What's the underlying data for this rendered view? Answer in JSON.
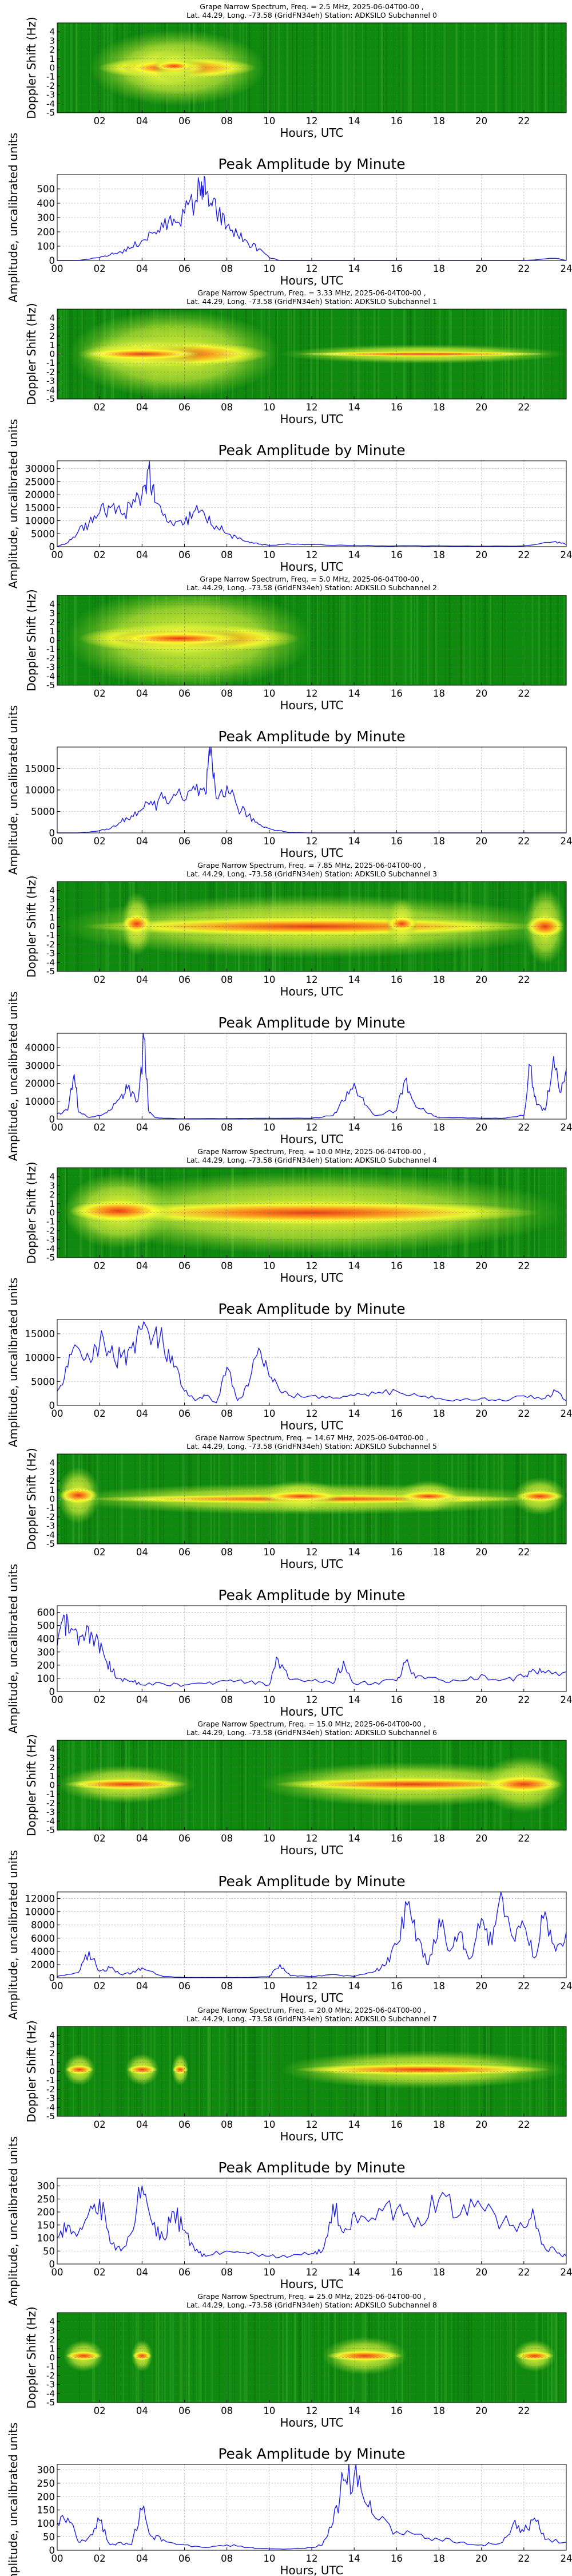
{
  "axis": {
    "xlabel": "Hours, UTC",
    "spec_ylabel": "Doppler Shift (Hz)",
    "amp_ylabel": "Amplitude, uncalibrated units",
    "amp_title": "Peak Amplitude by Minute",
    "spec_xticks": [
      "02",
      "04",
      "06",
      "08",
      "10",
      "12",
      "14",
      "16",
      "18",
      "20",
      "22"
    ],
    "amp_xticks": [
      "00",
      "02",
      "04",
      "06",
      "08",
      "10",
      "12",
      "14",
      "16",
      "18",
      "20",
      "22",
      "24"
    ],
    "spec_yticks": [
      "4",
      "3",
      "2",
      "1",
      "0",
      "-1",
      "-2",
      "-3",
      "-4",
      "-5"
    ]
  },
  "colors": {
    "spectrum_background": "#0f8a0f",
    "spectrum_yellow": "#ffff33",
    "spectrum_red": "#e83016",
    "line": "#1f1fe6",
    "grid": "#b0b0b0"
  },
  "chart_data": [
    {
      "type": "heatmap",
      "subchannel": 0,
      "title_line1": "Grape Narrow Spectrum, Freq. = 2.5 MHz, 2025-06-04T00-00 ,",
      "title_line2": "Lat. 44.29, Long. -73.58 (GridFN34eh) Station: ADKSILO Subchannel 0",
      "xlim": [
        0,
        24
      ],
      "ylim": [
        -5,
        5
      ],
      "activity": [
        [
          1.5,
          0,
          9.8,
          1.2
        ],
        [
          3,
          0,
          7.2,
          0.8
        ],
        [
          4.5,
          0.2,
          6.5,
          0.5
        ]
      ]
    },
    {
      "type": "line",
      "subchannel": 0,
      "ylim": [
        0,
        600
      ],
      "yticks": [
        0,
        100,
        200,
        300,
        400,
        500
      ],
      "x": [
        0,
        1,
        2,
        2.5,
        3,
        3.5,
        4,
        4.5,
        5,
        5.5,
        6,
        6.5,
        6.8,
        7,
        7.3,
        7.6,
        8,
        8.5,
        9,
        9.5,
        10,
        10.5,
        11,
        12,
        14,
        16,
        18,
        20,
        22,
        23.5,
        24
      ],
      "y": [
        0,
        0,
        20,
        40,
        60,
        90,
        140,
        190,
        230,
        290,
        330,
        410,
        550,
        460,
        380,
        320,
        240,
        180,
        120,
        80,
        20,
        0,
        0,
        0,
        0,
        0,
        0,
        0,
        0,
        15,
        0
      ]
    },
    {
      "type": "heatmap",
      "subchannel": 1,
      "title_line1": "Grape Narrow Spectrum, Freq. = 3.33 MHz, 2025-06-04T00-00 ,",
      "title_line2": "Lat. 44.29, Long. -73.58 (GridFN34eh) Station: ADKSILO Subchannel 1",
      "xlim": [
        0,
        24
      ],
      "ylim": [
        -5,
        5
      ],
      "activity": [
        [
          0.5,
          0,
          10.5,
          1.4
        ],
        [
          1,
          0,
          7,
          0.6
        ],
        [
          10.5,
          0,
          24,
          0.3
        ]
      ]
    },
    {
      "type": "line",
      "subchannel": 1,
      "ylim": [
        0,
        33000
      ],
      "yticks": [
        0,
        5000,
        10000,
        15000,
        20000,
        25000,
        30000
      ],
      "x": [
        0,
        0.5,
        1,
        1.5,
        2,
        2.5,
        3,
        3.5,
        4,
        4.3,
        4.6,
        5,
        5.5,
        6,
        6.5,
        7,
        7.5,
        8,
        8.5,
        9,
        9.5,
        10,
        11,
        12,
        14,
        16,
        18,
        20,
        22,
        23.5,
        24
      ],
      "y": [
        0,
        1500,
        6000,
        9000,
        13000,
        15000,
        13000,
        15000,
        20000,
        30000,
        17000,
        12000,
        8000,
        9000,
        14000,
        11000,
        8000,
        5000,
        3000,
        2000,
        1000,
        500,
        1000,
        800,
        400,
        300,
        300,
        200,
        300,
        2000,
        800
      ]
    },
    {
      "type": "heatmap",
      "subchannel": 2,
      "title_line1": "Grape Narrow Spectrum, Freq. = 5.0 MHz, 2025-06-04T00-00 ,",
      "title_line2": "Lat. 44.29, Long. -73.58 (GridFN34eh) Station: ADKSILO Subchannel 2",
      "xlim": [
        0,
        24
      ],
      "ylim": [
        -5,
        5
      ],
      "activity": [
        [
          0.4,
          0.2,
          12,
          1.6
        ],
        [
          2.5,
          0.2,
          9,
          0.7
        ]
      ]
    },
    {
      "type": "line",
      "subchannel": 2,
      "ylim": [
        0,
        20000
      ],
      "yticks": [
        0,
        5000,
        10000,
        15000
      ],
      "x": [
        0,
        1,
        2,
        2.5,
        3,
        3.5,
        4,
        4.5,
        5,
        5.5,
        6,
        6.5,
        7,
        7.2,
        7.5,
        8,
        8.5,
        9,
        9.5,
        10,
        10.5,
        11,
        12,
        14,
        16,
        18,
        20,
        22,
        24
      ],
      "y": [
        0,
        0,
        500,
        1000,
        2500,
        4000,
        5500,
        6500,
        8000,
        9000,
        7500,
        10000,
        9000,
        18000,
        8000,
        11000,
        6000,
        4000,
        2000,
        1000,
        500,
        100,
        0,
        0,
        0,
        0,
        0,
        0,
        0
      ]
    },
    {
      "type": "heatmap",
      "subchannel": 3,
      "title_line1": "Grape Narrow Spectrum, Freq. = 7.85 MHz, 2025-06-04T00-00 ,",
      "title_line2": "Lat. 44.29, Long. -73.58 (GridFN34eh) Station: ADKSILO Subchannel 3",
      "xlim": [
        0,
        24
      ],
      "ylim": [
        -5,
        5
      ],
      "activity": [
        [
          0,
          0,
          24,
          1.0
        ],
        [
          3,
          0.3,
          4.5,
          1.0
        ],
        [
          15.5,
          0.3,
          17,
          0.8
        ],
        [
          22,
          0,
          24,
          1.2
        ]
      ]
    },
    {
      "type": "line",
      "subchannel": 3,
      "ylim": [
        0,
        48000
      ],
      "yticks": [
        0,
        10000,
        20000,
        30000,
        40000
      ],
      "x": [
        0,
        0.5,
        0.8,
        1,
        1.5,
        2,
        2.5,
        3,
        3.3,
        3.8,
        4.1,
        4.3,
        4.6,
        5,
        6,
        8,
        10,
        12,
        13,
        13.5,
        14,
        14.5,
        15,
        16,
        16.4,
        16.8,
        17.5,
        18,
        20,
        21,
        22,
        22.3,
        22.6,
        23,
        23.4,
        23.7,
        24
      ],
      "y": [
        3000,
        5000,
        25000,
        4000,
        1000,
        2000,
        5000,
        13000,
        17000,
        10000,
        45000,
        5000,
        1000,
        500,
        200,
        300,
        500,
        500,
        2000,
        10000,
        20000,
        8000,
        2000,
        5000,
        22000,
        10000,
        3000,
        1000,
        500,
        500,
        2000,
        30000,
        8000,
        5000,
        35000,
        15000,
        28000
      ]
    },
    {
      "type": "heatmap",
      "subchannel": 4,
      "title_line1": "Grape Narrow Spectrum, Freq. = 10.0 MHz, 2025-06-04T00-00 ,",
      "title_line2": "Lat. 44.29, Long. -73.58 (GridFN34eh) Station: ADKSILO Subchannel 4",
      "xlim": [
        0,
        24
      ],
      "ylim": [
        -5,
        5
      ],
      "activity": [
        [
          0,
          0,
          24,
          1.3
        ],
        [
          0.3,
          0.2,
          5.5,
          1.2
        ]
      ]
    },
    {
      "type": "line",
      "subchannel": 4,
      "ylim": [
        0,
        18000
      ],
      "yticks": [
        0,
        5000,
        10000,
        15000
      ],
      "x": [
        0,
        0.5,
        1,
        1.5,
        2,
        2.5,
        3,
        3.5,
        4,
        4.5,
        5,
        5.5,
        6,
        6.5,
        7,
        7.5,
        8,
        8.5,
        9,
        9.5,
        10,
        10.5,
        11,
        12,
        13,
        14,
        15,
        16,
        17,
        18,
        19,
        20,
        21,
        22,
        23,
        23.5,
        24
      ],
      "y": [
        3000,
        8000,
        12000,
        10000,
        13000,
        11000,
        10000,
        12000,
        16000,
        14000,
        13000,
        8000,
        3000,
        1000,
        2000,
        500,
        8000,
        1000,
        4000,
        12000,
        6000,
        3000,
        2000,
        2000,
        1500,
        2000,
        2500,
        3000,
        2000,
        1500,
        1000,
        1500,
        1000,
        2000,
        1500,
        3000,
        1000
      ]
    },
    {
      "type": "heatmap",
      "subchannel": 5,
      "title_line1": "Grape Narrow Spectrum, Freq. = 14.67 MHz, 2025-06-04T00-00 ,",
      "title_line2": "Lat. 44.29, Long. -73.58 (GridFN34eh) Station: ADKSILO Subchannel 5",
      "xlim": [
        0,
        24
      ],
      "ylim": [
        -5,
        5
      ],
      "activity": [
        [
          0,
          0,
          24,
          0.5
        ],
        [
          0,
          0.4,
          2,
          0.9
        ],
        [
          9.5,
          0.3,
          13.5,
          0.5
        ],
        [
          16,
          0.3,
          19,
          0.5
        ],
        [
          21.5,
          0.3,
          24,
          0.6
        ]
      ]
    },
    {
      "type": "line",
      "subchannel": 5,
      "ylim": [
        0,
        650
      ],
      "yticks": [
        0,
        100,
        200,
        300,
        400,
        500,
        600
      ],
      "x": [
        0,
        0.3,
        0.6,
        1,
        1.4,
        1.8,
        2.2,
        2.6,
        3,
        3.5,
        4,
        5,
        6,
        7,
        8,
        9,
        10,
        10.4,
        11,
        12,
        13,
        13.5,
        14,
        15,
        16,
        16.4,
        17,
        18,
        19,
        20,
        21,
        22,
        22.5,
        23,
        24
      ],
      "y": [
        350,
        580,
        450,
        350,
        500,
        400,
        280,
        150,
        100,
        80,
        50,
        60,
        50,
        60,
        80,
        70,
        50,
        250,
        90,
        80,
        60,
        230,
        60,
        70,
        80,
        220,
        120,
        90,
        80,
        130,
        90,
        110,
        160,
        140,
        150
      ]
    },
    {
      "type": "heatmap",
      "subchannel": 6,
      "title_line1": "Grape Narrow Spectrum, Freq. = 15.0 MHz, 2025-06-04T00-00 ,",
      "title_line2": "Lat. 44.29, Long. -73.58 (GridFN34eh) Station: ADKSILO Subchannel 6",
      "xlim": [
        0,
        24
      ],
      "ylim": [
        -5,
        5
      ],
      "activity": [
        [
          0,
          0.1,
          6.5,
          0.6
        ],
        [
          9.5,
          0.1,
          24,
          0.7
        ],
        [
          20,
          0.1,
          24,
          0.9
        ]
      ]
    },
    {
      "type": "line",
      "subchannel": 6,
      "ylim": [
        0,
        13000
      ],
      "yticks": [
        0,
        2000,
        4000,
        6000,
        8000,
        10000,
        12000
      ],
      "x": [
        0,
        1,
        1.5,
        2,
        2.5,
        3,
        3.5,
        4,
        5,
        6,
        7,
        8,
        9,
        10,
        10.5,
        11,
        12,
        13,
        14,
        15,
        15.5,
        16,
        16.5,
        17,
        17.5,
        18,
        18.5,
        19,
        19.5,
        20,
        20.5,
        21,
        21.5,
        22,
        22.5,
        23,
        23.5,
        24
      ],
      "y": [
        200,
        800,
        4000,
        1000,
        1500,
        500,
        700,
        1500,
        200,
        50,
        50,
        50,
        50,
        200,
        2000,
        300,
        200,
        500,
        200,
        1000,
        2000,
        5000,
        11000,
        6000,
        2000,
        9000,
        4000,
        7000,
        3000,
        9000,
        5000,
        12000,
        6000,
        8000,
        3000,
        10000,
        4000,
        7000
      ]
    },
    {
      "type": "heatmap",
      "subchannel": 7,
      "title_line1": "Grape Narrow Spectrum, Freq. = 20.0 MHz, 2025-06-04T00-00 ,",
      "title_line2": "Lat. 44.29, Long. -73.58 (GridFN34eh) Station: ADKSILO Subchannel 7",
      "xlim": [
        0,
        24
      ],
      "ylim": [
        -5,
        5
      ],
      "activity": [
        [
          0.3,
          0.2,
          1.8,
          0.5
        ],
        [
          3.2,
          0.2,
          4.8,
          0.5
        ],
        [
          5.4,
          0.2,
          6.2,
          0.5
        ],
        [
          10.5,
          0.2,
          24,
          0.6
        ]
      ]
    },
    {
      "type": "line",
      "subchannel": 7,
      "ylim": [
        0,
        330
      ],
      "yticks": [
        0,
        50,
        100,
        150,
        200,
        250,
        300
      ],
      "x": [
        0,
        0.5,
        1,
        1.5,
        2,
        2.5,
        3,
        3.5,
        4,
        4.5,
        5,
        5.5,
        6,
        6.5,
        7,
        8,
        9,
        10,
        11,
        12,
        12.5,
        13,
        13.5,
        14,
        15,
        16,
        17,
        18,
        19,
        20,
        21,
        22,
        22.5,
        23,
        23.5,
        24
      ],
      "y": [
        100,
        150,
        120,
        200,
        250,
        80,
        50,
        120,
        300,
        150,
        100,
        200,
        130,
        50,
        30,
        50,
        40,
        30,
        30,
        40,
        50,
        230,
        120,
        200,
        170,
        210,
        180,
        250,
        190,
        220,
        160,
        140,
        180,
        60,
        50,
        30
      ]
    },
    {
      "type": "heatmap",
      "subchannel": 8,
      "title_line1": "Grape Narrow Spectrum, Freq. = 25.0 MHz, 2025-06-04T00-00 ,",
      "title_line2": "Lat. 44.29, Long. -73.58 (GridFN34eh) Station: ADKSILO Subchannel 8",
      "xlim": [
        0,
        24
      ],
      "ylim": [
        -5,
        5
      ],
      "activity": [
        [
          0.3,
          0.2,
          2.2,
          0.5
        ],
        [
          3.5,
          0.2,
          4.5,
          0.5
        ],
        [
          12.5,
          0.2,
          16.5,
          0.6
        ],
        [
          21.5,
          0.2,
          23.5,
          0.5
        ]
      ]
    },
    {
      "type": "line",
      "subchannel": 8,
      "ylim": [
        0,
        320
      ],
      "yticks": [
        0,
        50,
        100,
        150,
        200,
        250,
        300
      ],
      "x": [
        0,
        0.5,
        1,
        1.5,
        2,
        2.5,
        3,
        3.5,
        4,
        4.5,
        5,
        6,
        7,
        8,
        9,
        10,
        11,
        12,
        12.5,
        13,
        13.5,
        14,
        14.5,
        15,
        16,
        17,
        18,
        19,
        20,
        21,
        21.5,
        22,
        22.5,
        23,
        24
      ],
      "y": [
        100,
        120,
        30,
        50,
        110,
        20,
        30,
        20,
        150,
        50,
        40,
        20,
        10,
        20,
        10,
        5,
        5,
        10,
        20,
        100,
        260,
        280,
        180,
        120,
        70,
        60,
        40,
        30,
        20,
        30,
        100,
        70,
        120,
        40,
        30
      ]
    }
  ]
}
